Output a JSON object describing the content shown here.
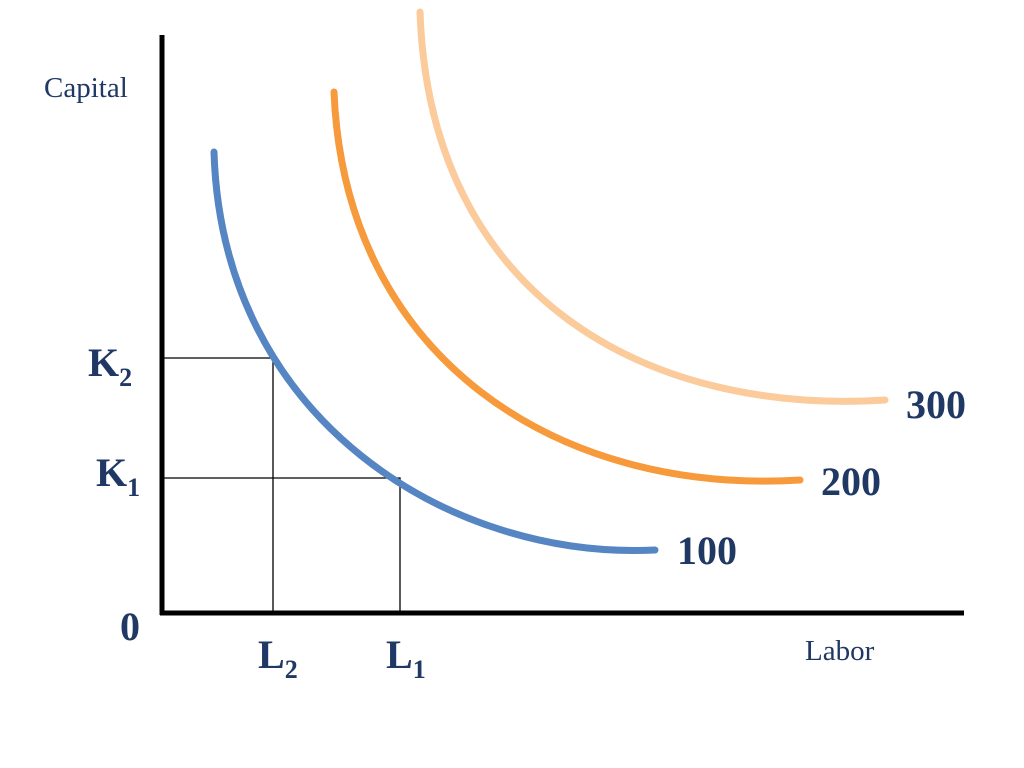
{
  "axes": {
    "y_label": "Capital",
    "x_label": "Labor",
    "origin": "0"
  },
  "y_marks": [
    {
      "letter": "K",
      "sub": "2"
    },
    {
      "letter": "K",
      "sub": "1"
    }
  ],
  "x_marks": [
    {
      "letter": "L",
      "sub": "2"
    },
    {
      "letter": "L",
      "sub": "1"
    }
  ],
  "curves": [
    "100",
    "200",
    "300"
  ]
}
